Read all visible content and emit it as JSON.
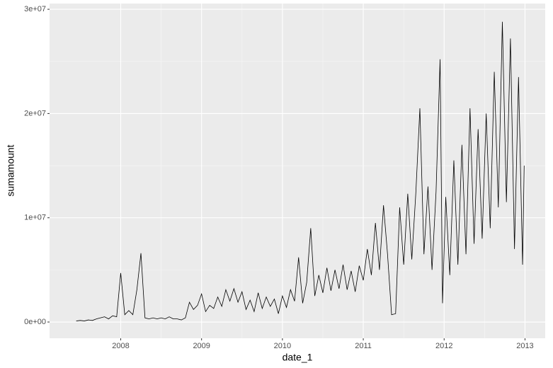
{
  "chart_data": {
    "type": "line",
    "x_label": "date_1",
    "y_label": "sumamount",
    "x": [
      2007.45,
      2007.5,
      2007.55,
      2007.6,
      2007.65,
      2007.7,
      2007.75,
      2007.8,
      2007.85,
      2007.9,
      2007.95,
      2008.0,
      2008.05,
      2008.1,
      2008.15,
      2008.2,
      2008.25,
      2008.3,
      2008.35,
      2008.4,
      2008.45,
      2008.5,
      2008.55,
      2008.6,
      2008.65,
      2008.7,
      2008.75,
      2008.8,
      2008.85,
      2008.9,
      2008.95,
      2009.0,
      2009.05,
      2009.1,
      2009.15,
      2009.2,
      2009.25,
      2009.3,
      2009.35,
      2009.4,
      2009.45,
      2009.5,
      2009.55,
      2009.6,
      2009.65,
      2009.7,
      2009.75,
      2009.8,
      2009.85,
      2009.9,
      2009.95,
      2010.0,
      2010.05,
      2010.1,
      2010.15,
      2010.2,
      2010.25,
      2010.3,
      2010.35,
      2010.4,
      2010.45,
      2010.5,
      2010.55,
      2010.6,
      2010.65,
      2010.7,
      2010.75,
      2010.8,
      2010.85,
      2010.9,
      2010.95,
      2011.0,
      2011.05,
      2011.1,
      2011.15,
      2011.2,
      2011.25,
      2011.3,
      2011.35,
      2011.4,
      2011.45,
      2011.5,
      2011.55,
      2011.6,
      2011.65,
      2011.7,
      2011.75,
      2011.8,
      2011.85,
      2011.9,
      2011.95,
      2011.98,
      2012.02,
      2012.07,
      2012.12,
      2012.17,
      2012.22,
      2012.27,
      2012.32,
      2012.37,
      2012.42,
      2012.47,
      2012.52,
      2012.57,
      2012.62,
      2012.67,
      2012.72,
      2012.77,
      2012.82,
      2012.87,
      2012.92,
      2012.97,
      2012.99
    ],
    "series": [
      {
        "color": "#000000",
        "values": [
          100000,
          150000,
          100000,
          200000,
          150000,
          300000,
          400000,
          500000,
          300000,
          600000,
          500000,
          4700000,
          700000,
          1100000,
          700000,
          3100000,
          6600000,
          400000,
          300000,
          400000,
          300000,
          400000,
          300000,
          500000,
          300000,
          300000,
          200000,
          400000,
          1900000,
          1200000,
          1600000,
          2700000,
          1000000,
          1600000,
          1300000,
          2400000,
          1500000,
          3100000,
          2000000,
          3200000,
          1900000,
          2900000,
          1200000,
          2100000,
          1000000,
          2800000,
          1300000,
          2400000,
          1500000,
          2200000,
          800000,
          2500000,
          1400000,
          3100000,
          2000000,
          6200000,
          1800000,
          3800000,
          9000000,
          2500000,
          4500000,
          2800000,
          5200000,
          3000000,
          5000000,
          3200000,
          5500000,
          3100000,
          4900000,
          2900000,
          5400000,
          4000000,
          7000000,
          4500000,
          9500000,
          5000000,
          11200000,
          6500000,
          700000,
          800000,
          11000000,
          5500000,
          12300000,
          6000000,
          12400000,
          20500000,
          6500000,
          13000000,
          5000000,
          12500000,
          25200000,
          1800000,
          12000000,
          4500000,
          15500000,
          5500000,
          17000000,
          6500000,
          20500000,
          7500000,
          18500000,
          8000000,
          20000000,
          9000000,
          24000000,
          11000000,
          28800000,
          11500000,
          27200000,
          7000000,
          23500000,
          5500000,
          15000000
        ]
      }
    ],
    "xlim": [
      2007.12,
      2013.25
    ],
    "xticks": [
      2008,
      2009,
      2010,
      2011,
      2012,
      2013
    ],
    "ylim": [
      -1560000,
      30550000
    ],
    "yticks": [
      {
        "value": 0,
        "label": "0e+00"
      },
      {
        "value": 10000000,
        "label": "1e+07"
      },
      {
        "value": 20000000,
        "label": "2e+07"
      },
      {
        "value": 30000000,
        "label": "3e+07"
      }
    ],
    "grid": true
  }
}
